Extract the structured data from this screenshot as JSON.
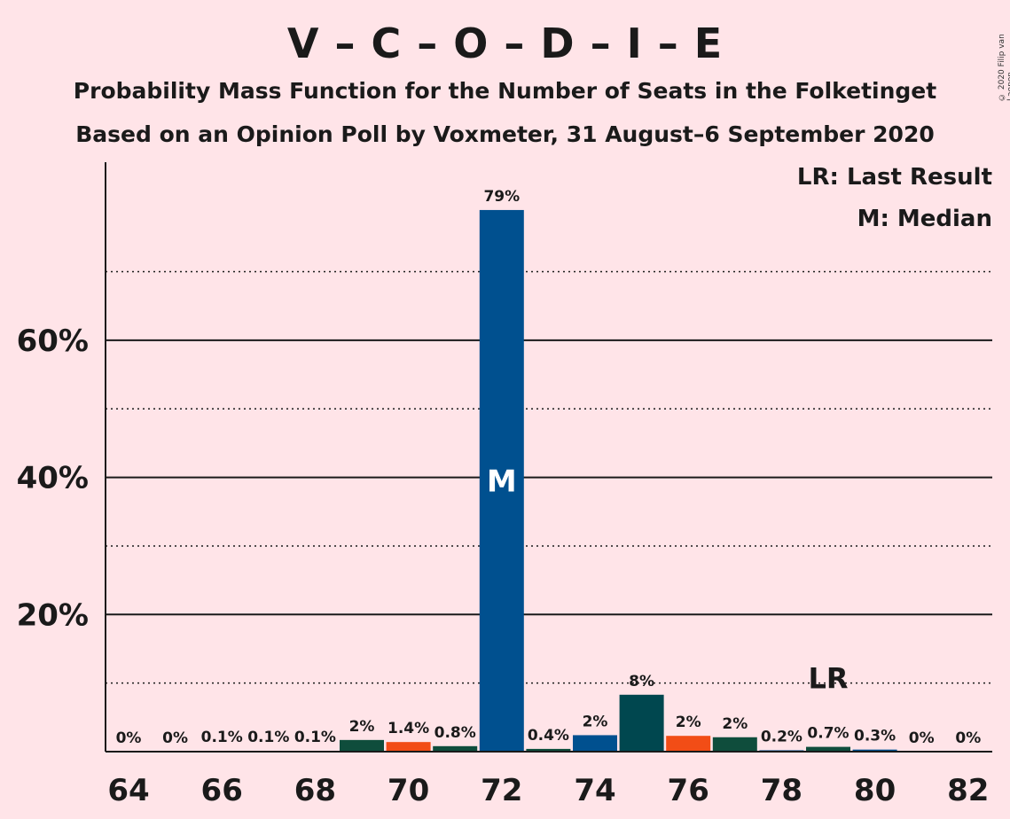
{
  "chart_data": {
    "type": "bar",
    "title": "V – C – O – D – I – E",
    "subtitle": "Probability Mass Function for the Number of Seats in the Folketinget",
    "subtitle2": "Based on an Opinion Poll by Voxmeter, 31 August–6 September 2020",
    "copyright": "© 2020 Filip van Laenen",
    "legend": [
      "LR: Last Result",
      "M: Median"
    ],
    "legend_position": "top-right",
    "xlabel": "",
    "ylabel": "",
    "ylim": [
      0,
      86
    ],
    "yticks": [
      {
        "value": 20,
        "label": "20%"
      },
      {
        "value": 40,
        "label": "40%"
      },
      {
        "value": 60,
        "label": "60%"
      }
    ],
    "dotted_gridlines": [
      10,
      30,
      50,
      70
    ],
    "xticks": [
      64,
      66,
      68,
      70,
      72,
      74,
      76,
      78,
      80,
      82
    ],
    "x": [
      64,
      65,
      66,
      67,
      68,
      69,
      70,
      71,
      72,
      73,
      74,
      75,
      76,
      77,
      78,
      79,
      80,
      81,
      82
    ],
    "values": [
      0,
      0,
      0.1,
      0.1,
      0.1,
      1.7,
      1.4,
      0.8,
      79,
      0.4,
      2.4,
      8.3,
      2.3,
      2.1,
      0.2,
      0.7,
      0.3,
      0,
      0
    ],
    "value_labels": [
      "0%",
      "0%",
      "0.1%",
      "0.1%",
      "0.1%",
      "2%",
      "1.4%",
      "0.8%",
      "79%",
      "0.4%",
      "2%",
      "8%",
      "2%",
      "2%",
      "0.2%",
      "0.7%",
      "0.3%",
      "0%",
      "0%"
    ],
    "bar_colors": [
      "#0F4D3C",
      "#F24D16",
      "#0F4D3C",
      "#00508F",
      "#0F4D3C",
      "#0F4D3C",
      "#F24D16",
      "#0F4D3C",
      "#00508F",
      "#0F4D3C",
      "#00508F",
      "#00474F",
      "#F24D16",
      "#0F4D3C",
      "#00508F",
      "#0F4D3C",
      "#00508F",
      "#0F4D3C",
      "#00508F"
    ],
    "median": {
      "x": 72,
      "label": "M"
    },
    "last_result": {
      "x": 79,
      "label": "LR"
    },
    "grid": true
  }
}
